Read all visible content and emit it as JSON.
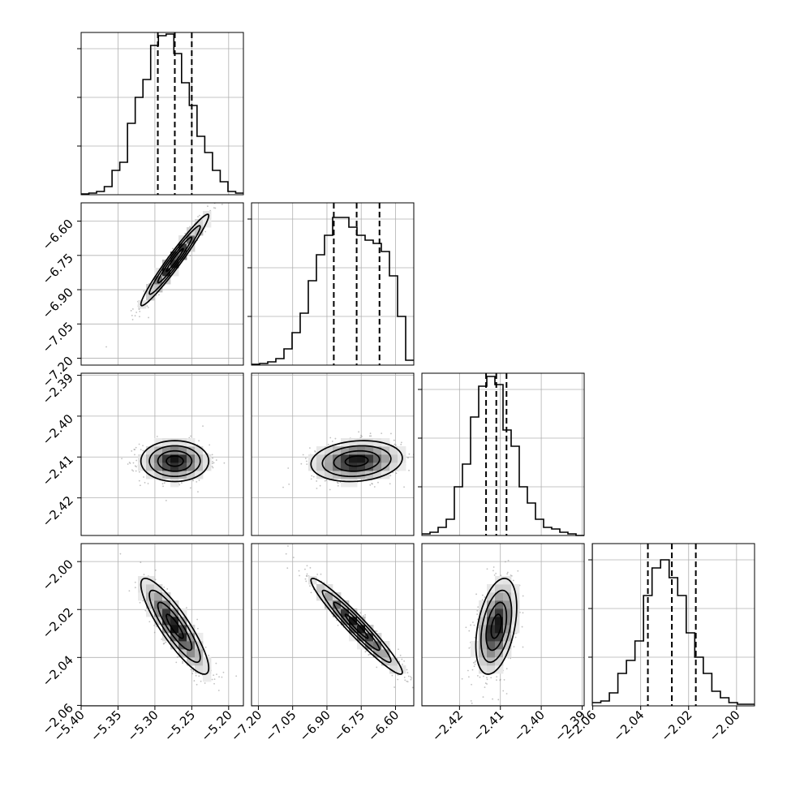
{
  "chart_data": {
    "type": "corner",
    "title": "",
    "grid": true,
    "parameters": [
      {
        "name": "",
        "median": -5.273,
        "q16": -5.296,
        "q84": -5.25,
        "range": [
          -5.4,
          -5.18
        ],
        "ticks": [
          -5.4,
          -5.35,
          -5.3,
          -5.25,
          -5.2
        ],
        "tick_labels": [
          "−5.40",
          "−5.35",
          "−5.30",
          "−5.25",
          "−5.20"
        ],
        "histogram": [
          0.005,
          0.01,
          0.02,
          0.05,
          0.15,
          0.2,
          0.44,
          0.6,
          0.71,
          0.92,
          0.98,
          0.99,
          0.87,
          0.69,
          0.55,
          0.36,
          0.26,
          0.15,
          0.08,
          0.02,
          0.01
        ]
      },
      {
        "name": "",
        "median": -6.77,
        "q16": -6.87,
        "q84": -6.67,
        "range": [
          -7.23,
          -6.52
        ],
        "ticks": [
          -7.2,
          -7.05,
          -6.9,
          -6.75,
          -6.6
        ],
        "tick_labels": [
          "−7.20",
          "−7.05",
          "−6.90",
          "−6.75",
          "−6.60"
        ],
        "histogram": [
          0.005,
          0.01,
          0.02,
          0.04,
          0.1,
          0.2,
          0.32,
          0.52,
          0.68,
          0.8,
          0.91,
          0.91,
          0.85,
          0.8,
          0.77,
          0.75,
          0.7,
          0.55,
          0.3,
          0.03
        ]
      },
      {
        "name": "",
        "median": -2.411,
        "q16": -2.4135,
        "q84": -2.4085,
        "range": [
          -2.4292,
          -2.3895
        ],
        "ticks": [
          -2.42,
          -2.41,
          -2.4,
          -2.39
        ],
        "tick_labels": [
          "−2.42",
          "−2.41",
          "−2.40",
          "−2.39"
        ],
        "histogram": [
          0.01,
          0.02,
          0.05,
          0.1,
          0.3,
          0.44,
          0.73,
          0.92,
          0.98,
          0.93,
          0.65,
          0.55,
          0.3,
          0.2,
          0.1,
          0.05,
          0.04,
          0.02,
          0.01,
          0.0
        ]
      },
      {
        "name": "",
        "median": -2.027,
        "q16": -2.037,
        "q84": -2.017,
        "range": [
          -2.0602,
          -1.9925
        ],
        "ticks": [
          -2.06,
          -2.04,
          -2.02,
          -2.0
        ],
        "tick_labels": [
          "−2.06",
          "−2.04",
          "−2.02",
          "−2.00"
        ],
        "histogram": [
          0.02,
          0.03,
          0.08,
          0.2,
          0.28,
          0.4,
          0.68,
          0.85,
          0.9,
          0.79,
          0.68,
          0.45,
          0.3,
          0.2,
          0.09,
          0.05,
          0.02,
          0.01,
          0.01
        ]
      }
    ],
    "correlations": [
      {
        "x": 0,
        "y": 1,
        "rho": 0.97
      },
      {
        "x": 0,
        "y": 2,
        "rho": 0.0
      },
      {
        "x": 1,
        "y": 2,
        "rho": 0.15
      },
      {
        "x": 0,
        "y": 3,
        "rho": -0.87
      },
      {
        "x": 1,
        "y": 3,
        "rho": -0.96
      },
      {
        "x": 2,
        "y": 3,
        "rho": 0.4
      }
    ],
    "contour_levels_sigma": [
      0.5,
      1.0,
      1.5,
      2.0
    ],
    "colors": {
      "lines": "#000000",
      "points": "#8c8c8c",
      "grid": "#b0b0b0"
    }
  }
}
